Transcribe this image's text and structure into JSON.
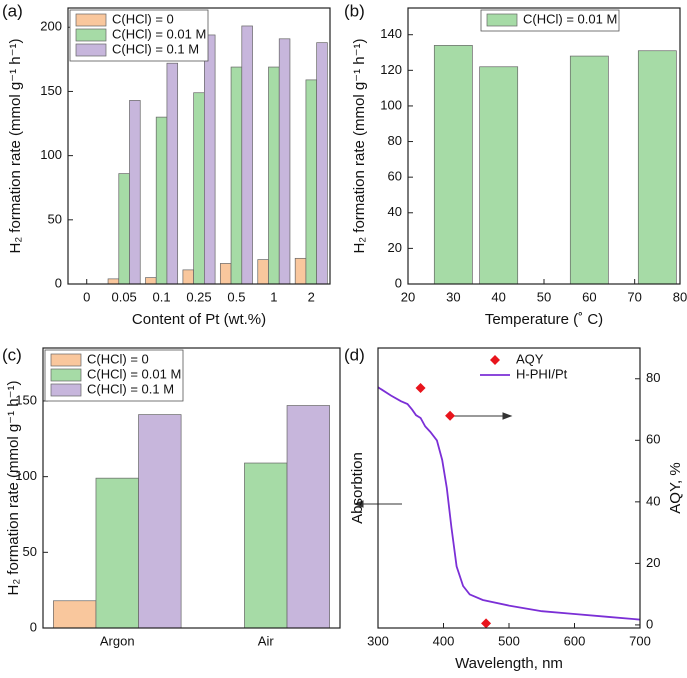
{
  "chart_data": [
    {
      "type": "bar",
      "title": "(a)",
      "categories": [
        "0",
        "0.05",
        "0.1",
        "0.25",
        "0.5",
        "1",
        "2"
      ],
      "series": [
        {
          "name": "C(HCl) = 0",
          "color": "#f9c79d",
          "values": [
            0,
            4,
            5,
            11,
            16,
            19,
            20
          ]
        },
        {
          "name": "C(HCl) = 0.01 M",
          "color": "#a6dba6",
          "values": [
            0,
            86,
            130,
            149,
            169,
            169,
            159
          ]
        },
        {
          "name": "C(HCl) = 0.1 M",
          "color": "#c7b6dc",
          "values": [
            0,
            143,
            172,
            194,
            201,
            191,
            188
          ]
        }
      ],
      "ylim": [
        0,
        215
      ],
      "yticks": [
        0,
        50,
        100,
        150,
        200
      ],
      "xlabel": "Content of Pt (wt.%)",
      "ylabel": "H₂ formation rate  (mmol g⁻¹ h⁻¹)",
      "legend": "upper left"
    },
    {
      "type": "bar",
      "title": "(b)",
      "x": [
        30,
        40,
        60,
        75
      ],
      "series": [
        {
          "name": "C(HCl) = 0.01 M",
          "color": "#a6dba6",
          "values": [
            134,
            122,
            128,
            131
          ]
        }
      ],
      "xlim": [
        20,
        80
      ],
      "xticks": [
        20,
        30,
        40,
        50,
        60,
        70,
        80
      ],
      "ylim": [
        0,
        155
      ],
      "yticks": [
        0,
        20,
        40,
        60,
        80,
        100,
        120,
        140
      ],
      "xlabel": "Temperature  (˚ C)",
      "ylabel": "H₂ formation rate  (mmol g⁻¹ h⁻¹)",
      "legend": "upper center"
    },
    {
      "type": "bar",
      "title": "(c)",
      "categories": [
        "Argon",
        "Air"
      ],
      "series": [
        {
          "name": "C(HCl) = 0",
          "color": "#f9c79d",
          "values": [
            18,
            null
          ]
        },
        {
          "name": "C(HCl) = 0.01 M",
          "color": "#a6dba6",
          "values": [
            99,
            109
          ]
        },
        {
          "name": "C(HCl) = 0.1 M",
          "color": "#c7b6dc",
          "values": [
            141,
            147
          ]
        }
      ],
      "ylim": [
        0,
        185
      ],
      "yticks": [
        0,
        50,
        100,
        150
      ],
      "ylabel": "H₂ formation rate  (mmol g⁻¹ h⁻¹)",
      "legend": "upper left"
    },
    {
      "type": "line",
      "title": "(d)",
      "series": [
        {
          "name": "AQY",
          "kind": "scatter",
          "marker": "diamond",
          "color": "#e8141c",
          "axis": "y2",
          "x": [
            365,
            410,
            465
          ],
          "values": [
            77,
            68,
            0.5
          ]
        },
        {
          "name": "H-PHI/Pt",
          "kind": "line",
          "color": "#7b2fd6",
          "x": [
            300,
            320,
            335,
            345,
            352,
            358,
            365,
            372,
            380,
            390,
            398,
            405,
            412,
            420,
            430,
            440,
            460,
            500,
            550,
            600,
            650,
            700
          ],
          "values": [
            0.86,
            0.83,
            0.81,
            0.8,
            0.78,
            0.76,
            0.75,
            0.72,
            0.7,
            0.67,
            0.6,
            0.5,
            0.36,
            0.22,
            0.15,
            0.12,
            0.1,
            0.08,
            0.06,
            0.05,
            0.04,
            0.03
          ]
        }
      ],
      "xlim": [
        300,
        700
      ],
      "xticks": [
        300,
        400,
        500,
        600,
        700
      ],
      "ylim": [
        0,
        1
      ],
      "y2lim": [
        -1,
        90
      ],
      "y2ticks": [
        0,
        20,
        40,
        60,
        80
      ],
      "xlabel": "Wavelength, nm",
      "ylabel": "Absorbtion",
      "y2label": "AQY, %",
      "legend": "upper right"
    }
  ]
}
